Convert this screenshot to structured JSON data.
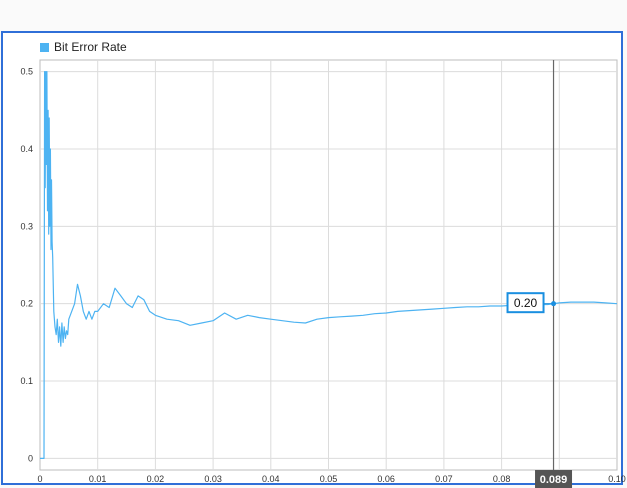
{
  "chart_data": {
    "type": "line",
    "title": "",
    "xlabel": "",
    "ylabel": "",
    "xlim": [
      0,
      0.1
    ],
    "ylim": [
      -0.015,
      0.515
    ],
    "grid": true,
    "legend_position": "top-left",
    "x_ticks": [
      "0",
      "0.01",
      "0.02",
      "0.03",
      "0.04",
      "0.05",
      "0.06",
      "0.07",
      "0.08",
      "0.09",
      "0.10"
    ],
    "y_ticks": [
      "0",
      "0.1",
      "0.2",
      "0.3",
      "0.4",
      "0.5"
    ],
    "series": [
      {
        "name": "Bit Error Rate",
        "color": "#4db3f2",
        "x": [
          0,
          0.0007,
          0.0008,
          0.0009,
          0.001,
          0.0011,
          0.0012,
          0.0013,
          0.0014,
          0.0015,
          0.0016,
          0.0017,
          0.0018,
          0.0019,
          0.002,
          0.0021,
          0.0022,
          0.0024,
          0.0026,
          0.0028,
          0.003,
          0.0032,
          0.0034,
          0.0036,
          0.0038,
          0.004,
          0.0042,
          0.0044,
          0.0046,
          0.0048,
          0.005,
          0.0055,
          0.006,
          0.0065,
          0.007,
          0.0075,
          0.008,
          0.0085,
          0.009,
          0.0095,
          0.01,
          0.011,
          0.012,
          0.013,
          0.014,
          0.015,
          0.016,
          0.017,
          0.018,
          0.019,
          0.02,
          0.022,
          0.024,
          0.026,
          0.028,
          0.03,
          0.032,
          0.034,
          0.036,
          0.038,
          0.04,
          0.042,
          0.044,
          0.046,
          0.048,
          0.05,
          0.052,
          0.054,
          0.056,
          0.058,
          0.06,
          0.062,
          0.064,
          0.066,
          0.068,
          0.07,
          0.072,
          0.074,
          0.076,
          0.078,
          0.08,
          0.082,
          0.084,
          0.086,
          0.088,
          0.089,
          0.09,
          0.092,
          0.094,
          0.096,
          0.098,
          0.1
        ],
        "values": [
          0,
          0,
          0.5,
          0.35,
          0.5,
          0.38,
          0.5,
          0.32,
          0.45,
          0.29,
          0.44,
          0.3,
          0.4,
          0.27,
          0.36,
          0.28,
          0.26,
          0.19,
          0.17,
          0.16,
          0.18,
          0.15,
          0.17,
          0.145,
          0.175,
          0.15,
          0.17,
          0.155,
          0.165,
          0.16,
          0.18,
          0.19,
          0.2,
          0.225,
          0.21,
          0.19,
          0.18,
          0.19,
          0.18,
          0.19,
          0.19,
          0.2,
          0.195,
          0.22,
          0.21,
          0.2,
          0.195,
          0.21,
          0.205,
          0.19,
          0.185,
          0.18,
          0.178,
          0.172,
          0.175,
          0.178,
          0.188,
          0.18,
          0.185,
          0.182,
          0.18,
          0.178,
          0.176,
          0.175,
          0.18,
          0.182,
          0.183,
          0.184,
          0.185,
          0.187,
          0.188,
          0.19,
          0.191,
          0.192,
          0.193,
          0.194,
          0.195,
          0.196,
          0.196,
          0.197,
          0.197,
          0.198,
          0.198,
          0.199,
          0.199,
          0.2,
          0.201,
          0.202,
          0.202,
          0.202,
          0.201,
          0.2
        ]
      }
    ],
    "cursor": {
      "x": 0.089,
      "x_label": "0.089",
      "value_label": "0.20",
      "y": 0.2
    }
  }
}
